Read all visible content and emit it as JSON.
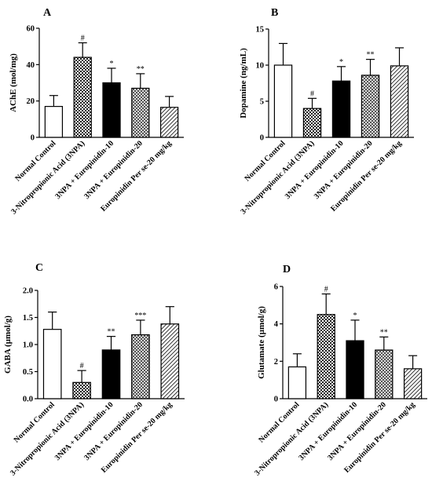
{
  "chart_data": [
    {
      "type": "bar",
      "panel": "A",
      "ylabel": "AChE (mol/mg)",
      "ylim": [
        0,
        60
      ],
      "yticks": [
        0,
        20,
        40,
        60
      ],
      "categories": [
        "Normal Control",
        "3-Nitropropionic Acid (3NPA)",
        "3NPA + Europinidin-10",
        "3NPA + Europinidin-20",
        "Europinidin Per se-20 mg/kg"
      ],
      "values": [
        17,
        44,
        30,
        27,
        16.5
      ],
      "errors": [
        6,
        8,
        8,
        8,
        6
      ],
      "significance": [
        "",
        "#",
        "*",
        "**",
        ""
      ]
    },
    {
      "type": "bar",
      "panel": "B",
      "ylabel": "Dopamine (ng/mL)",
      "ylim": [
        0,
        15
      ],
      "yticks": [
        0,
        5,
        10,
        15
      ],
      "categories": [
        "Normal Control",
        "3-Nitropropionic Acid (3NPA)",
        "3NPA + Europinidin-10",
        "3NPA + Europinidin-20",
        "Europinidin Per se-20 mg/kg"
      ],
      "values": [
        10,
        4,
        7.8,
        8.6,
        9.9
      ],
      "errors": [
        3,
        1.4,
        2,
        2.2,
        2.5
      ],
      "significance": [
        "",
        "#",
        "*",
        "**",
        ""
      ]
    },
    {
      "type": "bar",
      "panel": "C",
      "ylabel": "GABA (µmol/g)",
      "ylim": [
        0,
        2.0
      ],
      "yticks": [
        "0.0",
        "0.5",
        "1.0",
        "1.5",
        "2.0"
      ],
      "categories": [
        "Normal Control",
        "3-Nitropropionic Acid (3NPA)",
        "3NPA + Europinidin-10",
        "3NPA + Europinidin-20",
        "Europinidin Per se-20 mg/kg"
      ],
      "values": [
        1.28,
        0.3,
        0.9,
        1.18,
        1.38
      ],
      "errors": [
        0.32,
        0.22,
        0.25,
        0.27,
        0.32
      ],
      "significance": [
        "",
        "#",
        "**",
        "***",
        ""
      ]
    },
    {
      "type": "bar",
      "panel": "D",
      "ylabel": "Glutamate (µmol/g)",
      "ylim": [
        0,
        6
      ],
      "yticks": [
        0,
        2,
        4,
        6
      ],
      "categories": [
        "Normal Control",
        "3-Nitropropionic Acid (3NPA)",
        "3NPA + Europinidin-10",
        "3NPA + Europinidin-20",
        "Europinidin Per se-20 mg/kg"
      ],
      "values": [
        1.7,
        4.5,
        3.1,
        2.6,
        1.6
      ],
      "errors": [
        0.7,
        1.1,
        1.1,
        0.7,
        0.7
      ],
      "significance": [
        "",
        "#",
        "*",
        "**",
        ""
      ]
    }
  ],
  "bar_fills": [
    "white",
    "checker",
    "black",
    "diamond",
    "hatch"
  ]
}
